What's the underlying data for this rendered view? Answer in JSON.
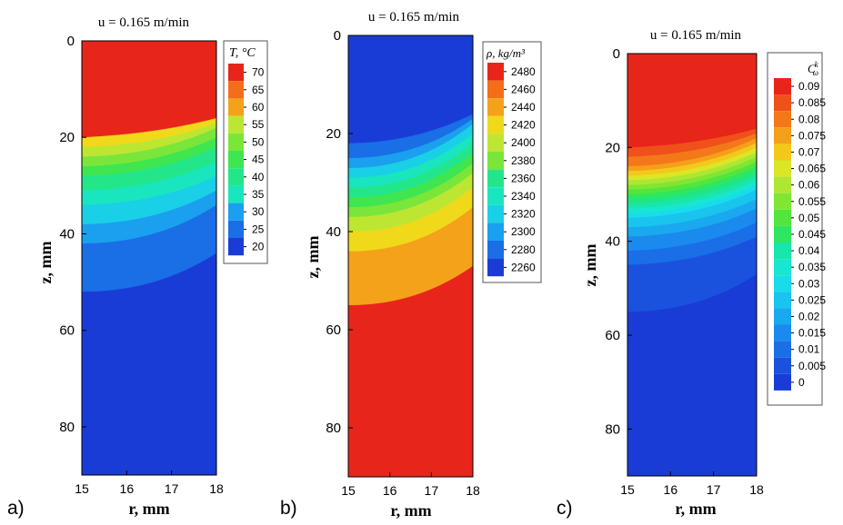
{
  "figure": {
    "panels": [
      {
        "id": "a",
        "panel_label": "a)",
        "title": "u = 0.165 m/min",
        "xlabel": "r, mm",
        "ylabel": "z, mm",
        "xticks": [
          "15",
          "16",
          "17",
          "18"
        ],
        "yticks": [
          "0",
          "20",
          "40",
          "60",
          "80"
        ],
        "legend_title": "T, °C",
        "legend_labels": [
          "70",
          "65",
          "60",
          "55",
          "50",
          "45",
          "40",
          "35",
          "30",
          "25",
          "20"
        ]
      },
      {
        "id": "b",
        "panel_label": "b)",
        "title": "u = 0.165 m/min",
        "xlabel": "r, mm",
        "ylabel": "z, mm",
        "xticks": [
          "15",
          "16",
          "17",
          "18"
        ],
        "yticks": [
          "0",
          "20",
          "40",
          "60",
          "80"
        ],
        "legend_title": "ρ, kg/m³",
        "legend_labels": [
          "2480",
          "2460",
          "2440",
          "2420",
          "2400",
          "2380",
          "2360",
          "2340",
          "2320",
          "2300",
          "2280",
          "2260"
        ]
      },
      {
        "id": "c",
        "panel_label": "c)",
        "title": "u = 0.165 m/min",
        "xlabel": "r, mm",
        "ylabel": "z, mm",
        "xticks": [
          "15",
          "16",
          "17",
          "18"
        ],
        "yticks": [
          "0",
          "20",
          "40",
          "60",
          "80"
        ],
        "legend_title": "C",
        "legend_title_sup": "k",
        "legend_title_sub": "ω",
        "legend_labels": [
          "0.09",
          "0.085",
          "0.08",
          "0.075",
          "0.07",
          "0.065",
          "0.06",
          "0.055",
          "0.05",
          "0.045",
          "0.04",
          "0.035",
          "0.03",
          "0.025",
          "0.02",
          "0.015",
          "0.01",
          "0.005",
          "0"
        ]
      }
    ]
  },
  "chart_data": [
    {
      "type": "heatmap",
      "title": "u = 0.165 m/min",
      "xlabel": "r, mm",
      "ylabel": "z, mm",
      "xlim": [
        15,
        18
      ],
      "ylim": [
        0,
        90
      ],
      "y_inverted": true,
      "legend_title": "T, °C",
      "levels": [
        20,
        25,
        30,
        35,
        40,
        45,
        50,
        55,
        60,
        65,
        70
      ],
      "colors": [
        "#1a3cd6",
        "#1a6ee6",
        "#1aa0ee",
        "#19d0e6",
        "#19e6bf",
        "#23e68a",
        "#3fe650",
        "#7ae63a",
        "#bde633",
        "#f0d91a",
        "#f4a21a",
        "#f46d1a",
        "#e8251a"
      ],
      "isoline_depth_mm": {
        "r15": [
          20,
          22,
          24,
          26,
          28,
          31,
          34,
          38,
          42,
          52
        ],
        "r18": [
          16,
          17,
          18,
          20,
          22,
          25,
          28,
          31,
          34,
          44
        ]
      },
      "max_region": "top",
      "min_region": "bottom"
    },
    {
      "type": "heatmap",
      "title": "u = 0.165 m/min",
      "xlabel": "r, mm",
      "ylabel": "z, mm",
      "xlim": [
        15,
        18
      ],
      "ylim": [
        0,
        90
      ],
      "y_inverted": true,
      "legend_title": "ρ, kg/m³",
      "levels": [
        2260,
        2280,
        2300,
        2320,
        2340,
        2360,
        2380,
        2400,
        2420,
        2440,
        2460,
        2480
      ],
      "colors": [
        "#1a3cd6",
        "#1a6ee6",
        "#1aa0ee",
        "#19d0e6",
        "#19e6bf",
        "#23e68a",
        "#3fe650",
        "#7ae63a",
        "#bde633",
        "#f0d91a",
        "#f4a21a",
        "#f46d1a",
        "#e8251a"
      ],
      "isoline_depth_mm": {
        "r15": [
          22,
          25,
          27,
          29,
          31,
          33,
          35,
          37,
          40,
          44,
          55
        ],
        "r18": [
          16,
          17,
          18,
          20,
          22,
          24,
          26,
          28,
          31,
          35,
          47
        ]
      },
      "max_region": "bottom",
      "min_region": "top"
    },
    {
      "type": "heatmap",
      "title": "u = 0.165 m/min",
      "xlabel": "r, mm",
      "ylabel": "z, mm",
      "xlim": [
        15,
        18
      ],
      "ylim": [
        0,
        90
      ],
      "y_inverted": true,
      "legend_title": "C_ω^k",
      "levels": [
        0,
        0.005,
        0.01,
        0.015,
        0.02,
        0.025,
        0.03,
        0.035,
        0.04,
        0.045,
        0.05,
        0.055,
        0.06,
        0.065,
        0.07,
        0.075,
        0.08,
        0.085,
        0.09
      ],
      "colors": [
        "#1a3cd6",
        "#1a52de",
        "#1a6ee6",
        "#1a8aee",
        "#1aa8ee",
        "#19c4ee",
        "#19dcea",
        "#19e6d0",
        "#19e6aa",
        "#1fe685",
        "#2ee660",
        "#52e63d",
        "#80e633",
        "#aee633",
        "#dae626",
        "#f4c81a",
        "#f4a01a",
        "#f4781a",
        "#f0501a",
        "#e8251a"
      ],
      "isoline_depth_mm": {
        "r15": [
          20,
          22,
          24,
          25,
          26,
          27,
          28,
          29,
          30,
          31,
          32,
          33,
          34,
          35,
          37,
          39,
          42,
          45,
          55
        ],
        "r18": [
          16,
          17,
          18,
          19,
          20,
          21,
          22,
          23,
          24,
          25,
          26,
          27,
          28,
          29,
          31,
          33,
          36,
          39,
          47
        ]
      },
      "max_region": "top",
      "min_region": "bottom"
    }
  ]
}
